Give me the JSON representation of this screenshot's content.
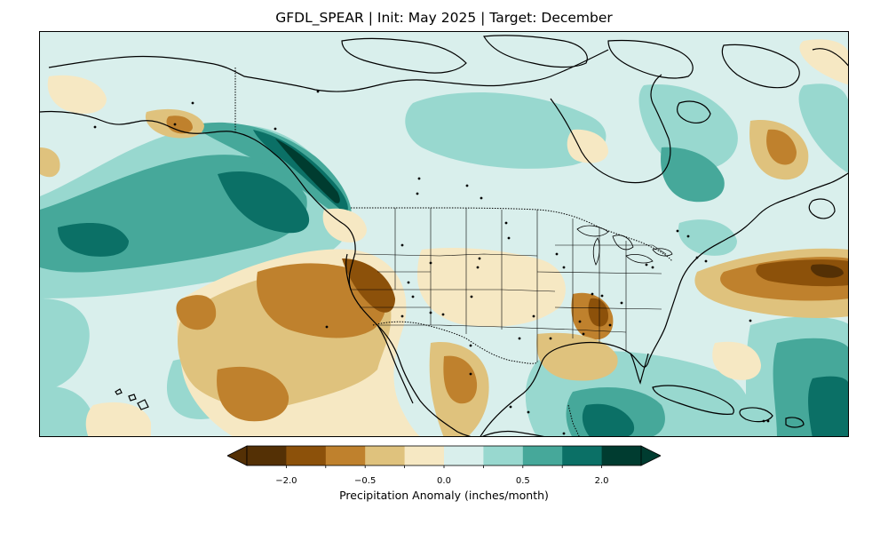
{
  "title": "GFDL_SPEAR | Init: May 2025 | Target: December",
  "colorbar": {
    "label": "Precipitation Anomaly (inches/month)",
    "ticks": [
      {
        "value": -2.0,
        "label": "−2.0"
      },
      {
        "value": -0.5,
        "label": "−0.5"
      },
      {
        "value": 0.0,
        "label": "0.0"
      },
      {
        "value": 0.5,
        "label": "0.5"
      },
      {
        "value": 2.0,
        "label": "2.0"
      }
    ],
    "bins": [
      {
        "color": "#543005"
      },
      {
        "color": "#8c510a"
      },
      {
        "color": "#bf812d"
      },
      {
        "color": "#dfc27d"
      },
      {
        "color": "#f6e8c3"
      },
      {
        "color": "#d9efec"
      },
      {
        "color": "#98d8cf"
      },
      {
        "color": "#46a89a"
      },
      {
        "color": "#0b7066"
      },
      {
        "color": "#003c30"
      }
    ],
    "extend": "both"
  },
  "colors": {
    "background_field": "#d9efec",
    "coastline": "#000000",
    "border": "#000000"
  }
}
